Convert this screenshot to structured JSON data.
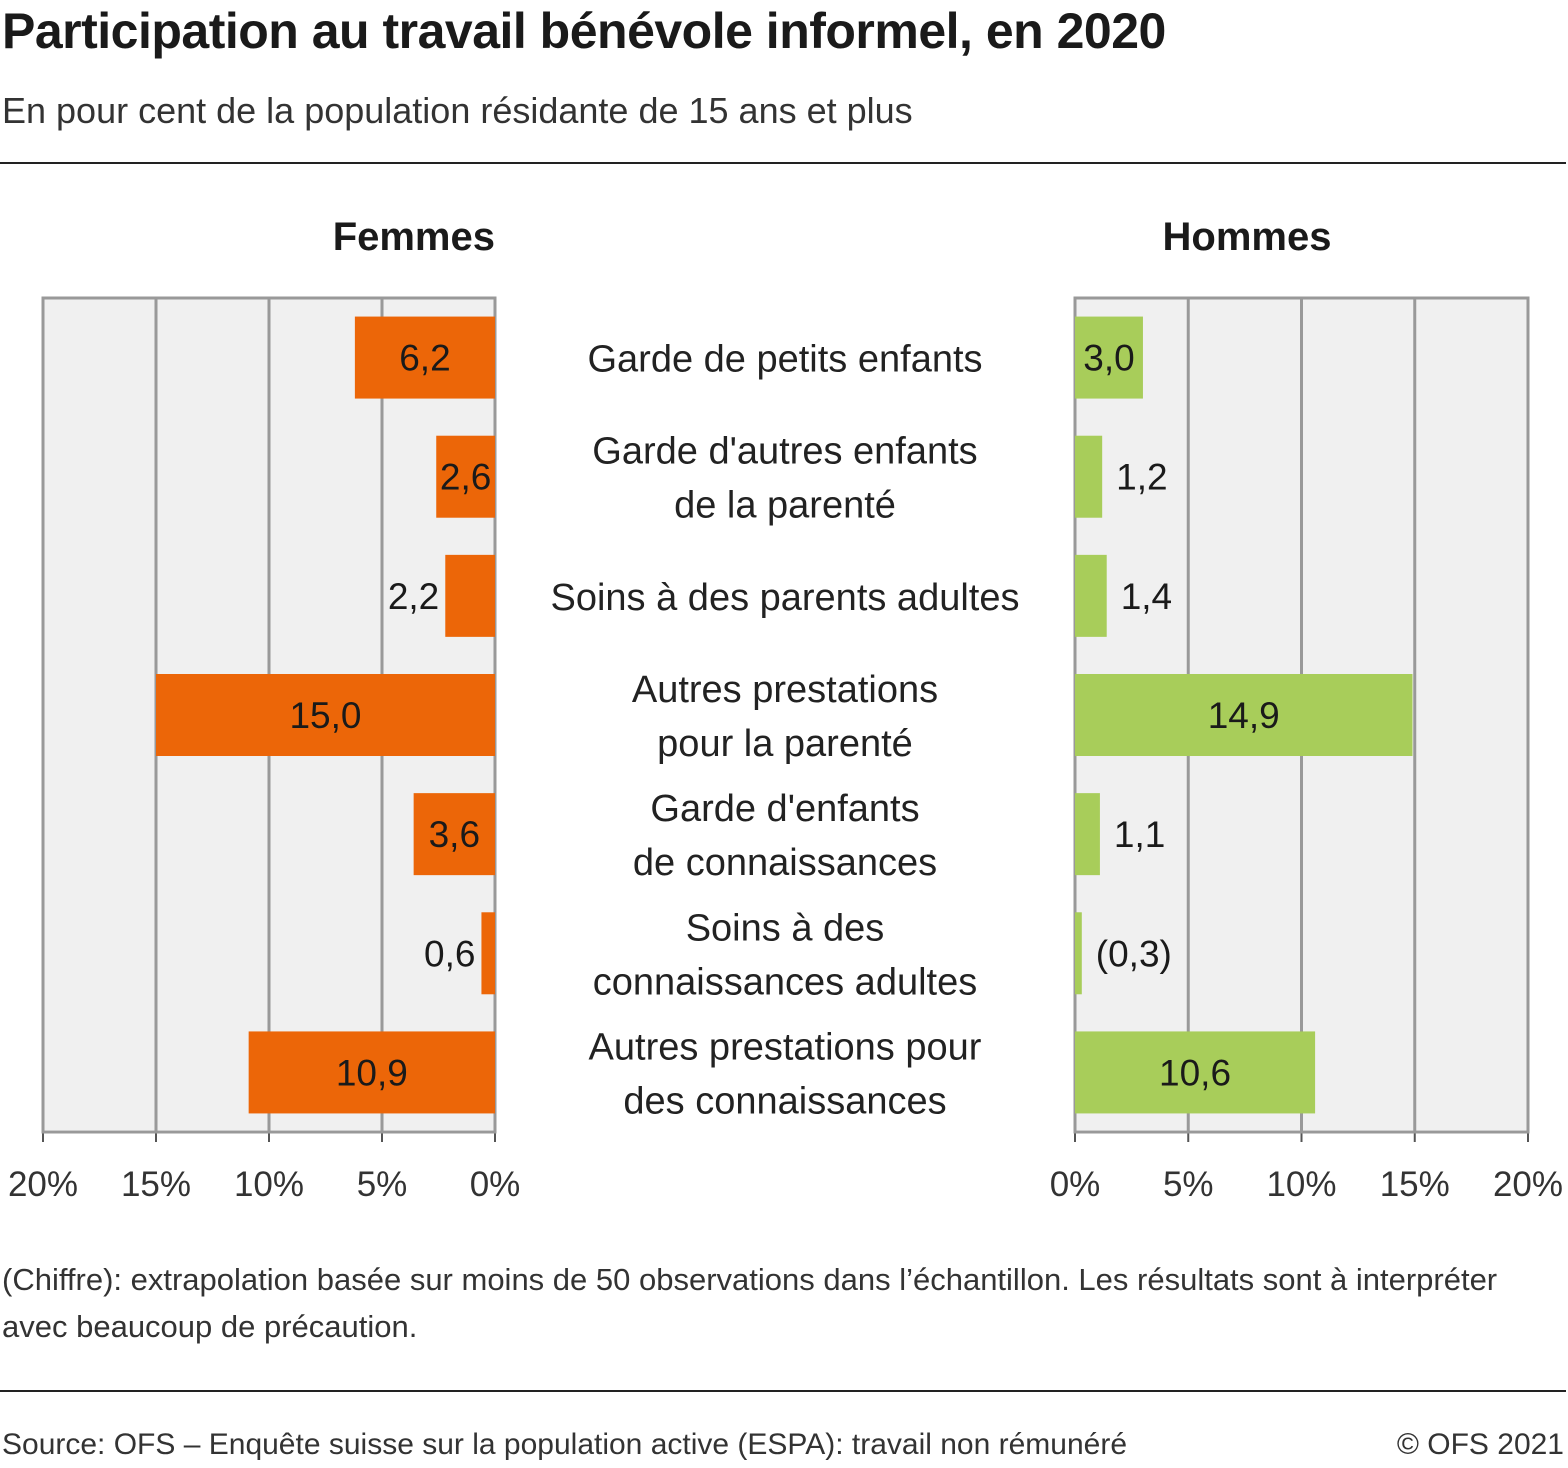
{
  "title": "Participation au travail bénévole informel, en 2020",
  "subtitle": "En pour cent de la population résidante de 15 ans et plus",
  "note": "(Chiffre): extrapolation basée sur moins de 50 observations dans l’échantillon. Les résultats sont à interpréter avec beaucoup de précaution.",
  "source": "Source: OFS – Enquête suisse sur la population active (ESPA): travail non rémunéré",
  "copyright": "© OFS 2021",
  "colors": {
    "femmes": "#ec6608",
    "hommes": "#a8cd5a",
    "plot_bg": "#f0f0f0",
    "grid": "#999999"
  },
  "chart_data": {
    "type": "bar",
    "orientation": "horizontal",
    "layout": "back-to-back",
    "categories": [
      [
        "Garde de petits enfants"
      ],
      [
        "Garde d'autres enfants",
        "de la parenté"
      ],
      [
        "Soins à des parents adultes"
      ],
      [
        "Autres prestations",
        "pour la parenté"
      ],
      [
        "Garde d'enfants",
        "de connaissances"
      ],
      [
        "Soins à des",
        "connaissances adultes"
      ],
      [
        "Autres prestations pour",
        "des connaissances"
      ]
    ],
    "series": [
      {
        "name": "Femmes",
        "values": [
          6.2,
          2.6,
          2.2,
          15.0,
          3.6,
          0.6,
          10.9
        ],
        "labels": [
          "6,2",
          "2,6",
          "2,2",
          "15,0",
          "3,6",
          "0,6",
          "10,9"
        ]
      },
      {
        "name": "Hommes",
        "values": [
          3.0,
          1.2,
          1.4,
          14.9,
          1.1,
          0.3,
          10.6
        ],
        "labels": [
          "3,0",
          "1,2",
          "1,4",
          "14,9",
          "1,1",
          "(0,3)",
          "10,6"
        ]
      }
    ],
    "xlim": [
      0,
      20
    ],
    "ticks": [
      0,
      5,
      10,
      15,
      20
    ],
    "tick_labels": [
      "0%",
      "5%",
      "10%",
      "15%",
      "20%"
    ],
    "grid": true
  }
}
